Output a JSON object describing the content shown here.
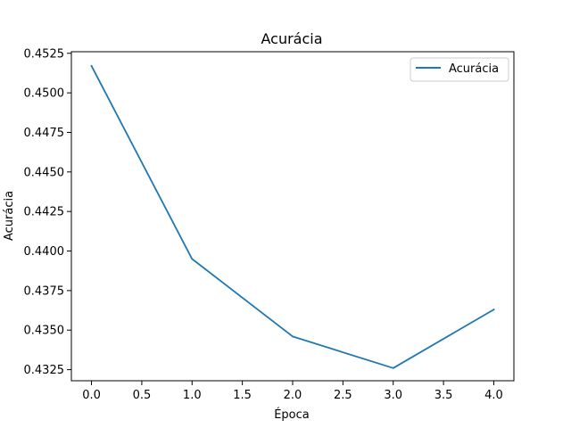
{
  "chart_data": {
    "type": "line",
    "title": "Acurácia",
    "xlabel": "Época",
    "ylabel": "Acurácia",
    "x": [
      0,
      1,
      2,
      3,
      4
    ],
    "series": [
      {
        "name": "Acurácia",
        "values": [
          0.4517,
          0.4395,
          0.4346,
          0.4326,
          0.4363
        ],
        "color": "#1f77b4"
      }
    ],
    "xlim": [
      -0.2,
      4.2
    ],
    "ylim": [
      0.4318,
      0.4526
    ],
    "xticks": [
      0.0,
      0.5,
      1.0,
      1.5,
      2.0,
      2.5,
      3.0,
      3.5,
      4.0
    ],
    "xtick_labels": [
      "0.0",
      "0.5",
      "1.0",
      "1.5",
      "2.0",
      "2.5",
      "3.0",
      "3.5",
      "4.0"
    ],
    "yticks": [
      0.4325,
      0.435,
      0.4375,
      0.44,
      0.4425,
      0.445,
      0.4475,
      0.45,
      0.4525
    ],
    "ytick_labels": [
      "0.4325",
      "0.4350",
      "0.4375",
      "0.4400",
      "0.4425",
      "0.4450",
      "0.4475",
      "0.4500",
      "0.4525"
    ],
    "grid": false,
    "legend_position": "top-right"
  }
}
